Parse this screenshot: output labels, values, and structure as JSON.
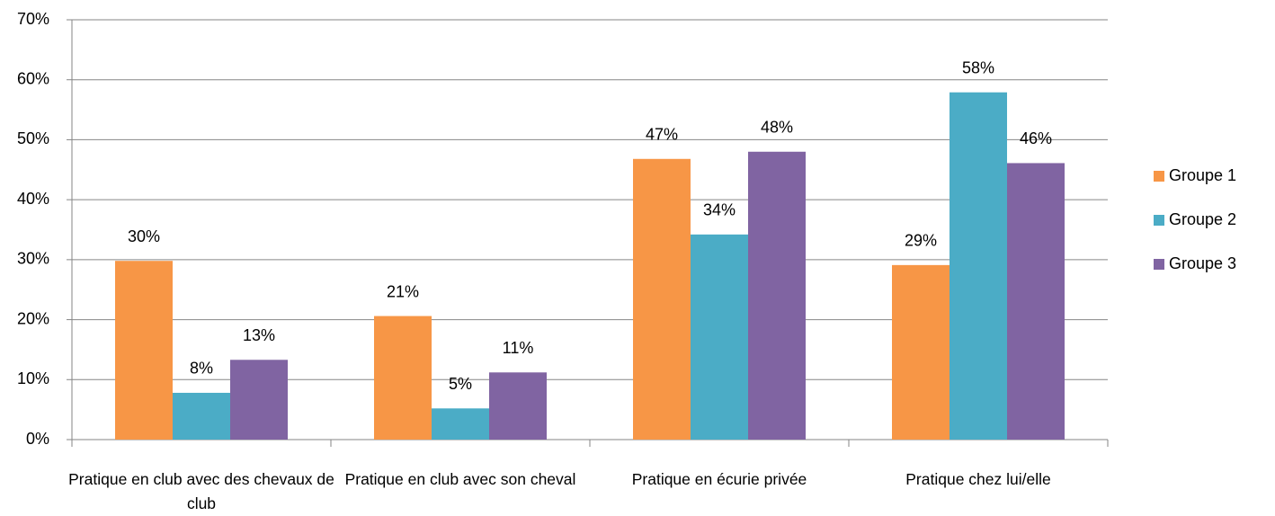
{
  "chart_data": {
    "type": "bar",
    "categories": [
      "Pratique en club avec des chevaux de club",
      "Pratique en club avec son cheval",
      "Pratique en écurie privée",
      "Pratique chez lui/elle"
    ],
    "series": [
      {
        "name": "Groupe 1",
        "color": "#f79646",
        "values": [
          29.8,
          20.6,
          46.8,
          29.1
        ],
        "value_labels": [
          "30%",
          "21%",
          "47%",
          "29%"
        ]
      },
      {
        "name": "Groupe 2",
        "color": "#4bacc6",
        "values": [
          7.8,
          5.2,
          34.2,
          57.9
        ],
        "value_labels": [
          "8%",
          "5%",
          "34%",
          "58%"
        ]
      },
      {
        "name": "Groupe 3",
        "color": "#8064a2",
        "values": [
          13.3,
          11.2,
          48,
          46.1
        ],
        "value_labels": [
          "13%",
          "11%",
          "48%",
          "46%"
        ]
      }
    ],
    "ylim": [
      0,
      70
    ],
    "yticks": [
      {
        "value": 0,
        "label": "0%"
      },
      {
        "value": 10,
        "label": "10%"
      },
      {
        "value": 20,
        "label": "20%"
      },
      {
        "value": 30,
        "label": "30%"
      },
      {
        "value": 40,
        "label": "40%"
      },
      {
        "value": 50,
        "label": "50%"
      },
      {
        "value": 60,
        "label": "60%"
      },
      {
        "value": 70,
        "label": "70%"
      }
    ],
    "grid": true,
    "legend": "right"
  }
}
